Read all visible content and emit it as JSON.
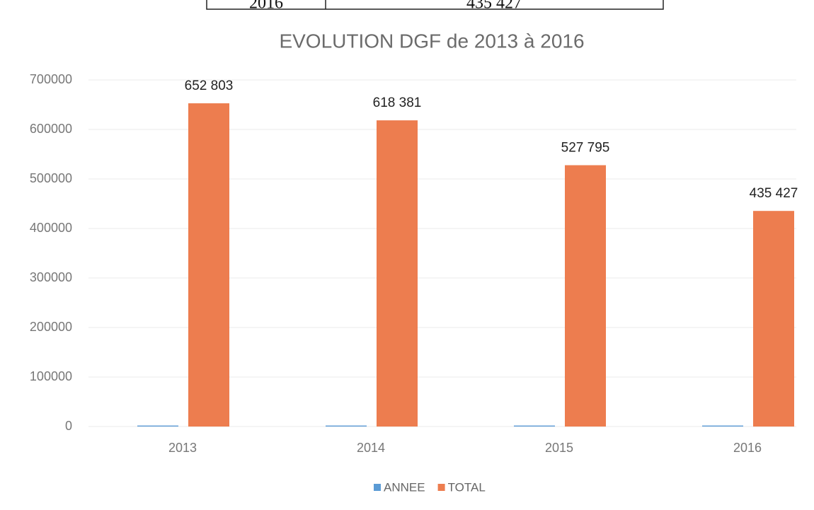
{
  "table": {
    "rows": [
      [
        "2016",
        "435 427"
      ]
    ]
  },
  "chart_data": {
    "type": "bar",
    "title": "EVOLUTION DGF de 2013 à 2016",
    "categories": [
      "2013",
      "2014",
      "2015",
      "2016"
    ],
    "series": [
      {
        "name": "ANNEE",
        "color": "#5b9bd5",
        "values": [
          2013,
          2014,
          2015,
          2016
        ]
      },
      {
        "name": "TOTAL",
        "color": "#ed7d4f",
        "values": [
          652803,
          618381,
          527795,
          435427
        ],
        "value_labels": [
          "652 803",
          "618 381",
          "527 795",
          "435 427"
        ]
      }
    ],
    "ylim": [
      0,
      700000
    ],
    "yticks": [
      0,
      100000,
      200000,
      300000,
      400000,
      500000,
      600000,
      700000
    ],
    "grid": true,
    "legend": "bottom"
  }
}
